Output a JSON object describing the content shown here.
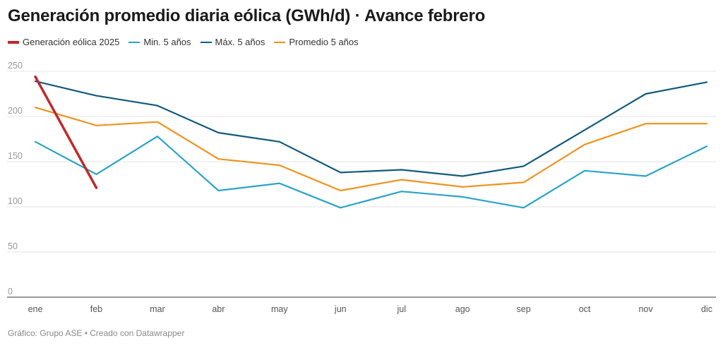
{
  "header": {
    "title": "Generación promedio diaria eólica (GWh/d) · Avance febrero"
  },
  "footer": {
    "credit": "Gráfico: Grupo ASE • Creado con Datawrapper"
  },
  "chart_data": {
    "type": "line",
    "title": "Generación promedio diaria eólica (GWh/d) · Avance febrero",
    "xlabel": "",
    "ylabel": "",
    "ylim": [
      0,
      250
    ],
    "yticks": [
      0,
      50,
      100,
      150,
      200,
      250
    ],
    "grid": true,
    "legend_position": "top-left",
    "categories": [
      "ene",
      "feb",
      "mar",
      "abr",
      "may",
      "jun",
      "jul",
      "ago",
      "sep",
      "oct",
      "nov",
      "dic"
    ],
    "series": [
      {
        "name": "Generación eólica 2025",
        "color": "#c0282d",
        "values": [
          244,
          121,
          null,
          null,
          null,
          null,
          null,
          null,
          null,
          null,
          null,
          null
        ]
      },
      {
        "name": "Min. 5 años",
        "color": "#2ba3c9",
        "values": [
          172,
          136,
          178,
          118,
          126,
          99,
          117,
          111,
          99,
          140,
          134,
          167
        ]
      },
      {
        "name": "Máx. 5 años",
        "color": "#125a7c",
        "values": [
          239,
          223,
          212,
          182,
          172,
          138,
          141,
          134,
          145,
          185,
          225,
          238
        ]
      },
      {
        "name": "Promedio 5 años",
        "color": "#f0921e",
        "values": [
          210,
          190,
          194,
          153,
          146,
          118,
          130,
          122,
          127,
          169,
          192,
          192
        ]
      }
    ]
  }
}
